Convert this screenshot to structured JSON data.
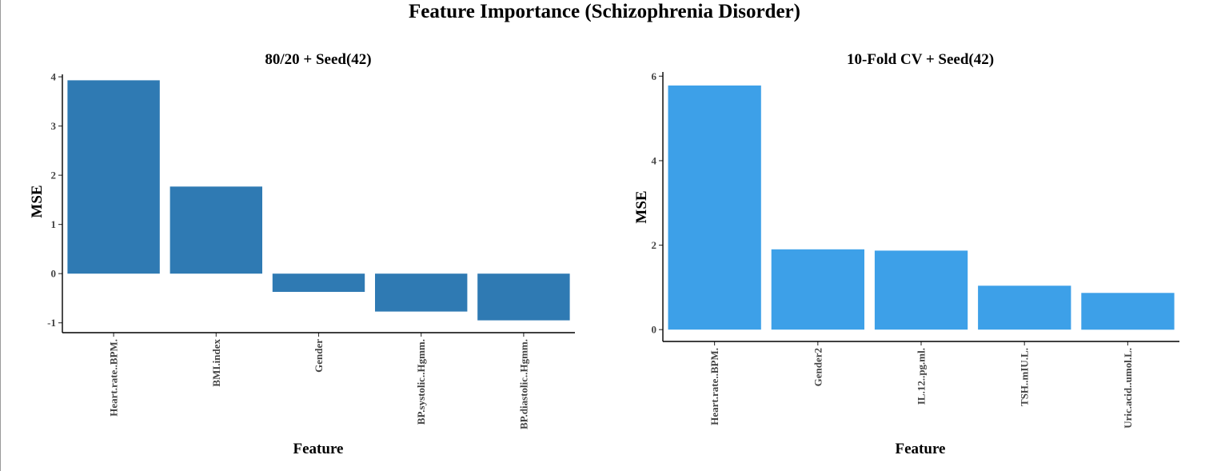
{
  "figure": {
    "title": "Feature Importance (Schizophrenia Disorder)"
  },
  "chart_data": [
    {
      "type": "bar",
      "title": "80/20 + Seed(42)",
      "xlabel": "Feature",
      "ylabel": "MSE",
      "categories": [
        "Heart.rate..BPM.",
        "BMI.index",
        "Gender",
        "BP.systolic..Hgmm.",
        "BP.diastolic..Hgmm."
      ],
      "values": [
        3.93,
        1.77,
        -0.37,
        -0.77,
        -0.95
      ],
      "ylim": [
        -1.2,
        4.05
      ],
      "yticks": [
        -1,
        0,
        1,
        2,
        3,
        4
      ],
      "color": "#2F7AB3",
      "grid": false
    },
    {
      "type": "bar",
      "title": "10-Fold CV + Seed(42)",
      "xlabel": "Feature",
      "ylabel": "MSE",
      "categories": [
        "Heart.rate..BPM.",
        "Gender2",
        "IL.12..pg.ml.",
        "TSH..mIU.L.",
        "Uric.acid..umol.L."
      ],
      "values": [
        5.78,
        1.9,
        1.87,
        1.04,
        0.87
      ],
      "ylim": [
        -0.28,
        6.1
      ],
      "yticks": [
        0,
        2,
        4,
        6
      ],
      "color": "#3DA0E8",
      "grid": false
    }
  ]
}
